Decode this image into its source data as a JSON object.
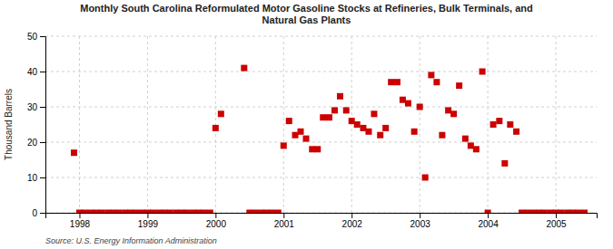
{
  "chart_data": {
    "type": "scatter",
    "title": "Monthly South Carolina Reformulated Motor Gasoline Stocks at Refineries, Bulk Terminals, and\nNatural Gas Plants",
    "ylabel": "Thousand Barrels",
    "source": "Source: U.S. Energy Information Administration",
    "color": "#cc0000",
    "marker": "square",
    "grid": true,
    "xlim": [
      1997.5,
      2005.6
    ],
    "ylim": [
      0,
      50
    ],
    "xticks": [
      1998,
      1999,
      2000,
      2001,
      2002,
      2003,
      2004,
      2005
    ],
    "yticks": [
      0,
      10,
      20,
      30,
      40,
      50
    ],
    "x": [
      1997.92,
      1998.0,
      1998.08,
      1998.17,
      1998.25,
      1998.33,
      1998.42,
      1998.5,
      1998.58,
      1998.67,
      1998.75,
      1998.83,
      1998.92,
      1999.0,
      1999.08,
      1999.17,
      1999.25,
      1999.33,
      1999.42,
      1999.5,
      1999.58,
      1999.67,
      1999.75,
      1999.83,
      1999.92,
      2000.0,
      2000.08,
      2000.42,
      2000.5,
      2000.58,
      2000.67,
      2000.75,
      2000.83,
      2000.92,
      2001.0,
      2001.08,
      2001.17,
      2001.25,
      2001.33,
      2001.42,
      2001.5,
      2001.58,
      2001.67,
      2001.75,
      2001.83,
      2001.92,
      2002.0,
      2002.08,
      2002.17,
      2002.25,
      2002.33,
      2002.42,
      2002.5,
      2002.58,
      2002.67,
      2002.75,
      2002.83,
      2002.92,
      2003.0,
      2003.08,
      2003.17,
      2003.25,
      2003.33,
      2003.42,
      2003.5,
      2003.58,
      2003.67,
      2003.75,
      2003.83,
      2003.92,
      2004.0,
      2004.08,
      2004.17,
      2004.25,
      2004.33,
      2004.42,
      2004.5,
      2004.58,
      2004.67,
      2004.75,
      2004.83,
      2004.92,
      2005.0,
      2005.08,
      2005.17,
      2005.25,
      2005.33,
      2005.42
    ],
    "values": [
      17,
      0,
      0,
      0,
      0,
      0,
      0,
      0,
      0,
      0,
      0,
      0,
      0,
      0,
      0,
      0,
      0,
      0,
      0,
      0,
      0,
      0,
      0,
      0,
      0,
      24,
      28,
      41,
      0,
      0,
      0,
      0,
      0,
      0,
      19,
      26,
      22,
      23,
      21,
      18,
      18,
      27,
      27,
      29,
      33,
      29,
      26,
      25,
      24,
      23,
      28,
      22,
      24,
      37,
      37,
      32,
      31,
      23,
      30,
      10,
      39,
      37,
      22,
      29,
      28,
      36,
      21,
      19,
      18,
      40,
      0,
      25,
      26,
      14,
      25,
      23,
      0,
      0,
      0,
      0,
      0,
      0,
      0,
      0,
      0,
      0,
      0,
      0
    ]
  }
}
